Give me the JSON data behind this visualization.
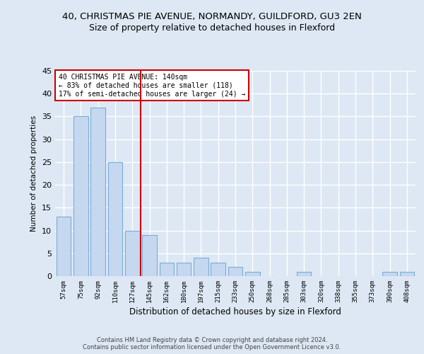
{
  "title_line1": "40, CHRISTMAS PIE AVENUE, NORMANDY, GUILDFORD, GU3 2EN",
  "title_line2": "Size of property relative to detached houses in Flexford",
  "xlabel": "Distribution of detached houses by size in Flexford",
  "ylabel": "Number of detached properties",
  "categories": [
    "57sqm",
    "75sqm",
    "92sqm",
    "110sqm",
    "127sqm",
    "145sqm",
    "162sqm",
    "180sqm",
    "197sqm",
    "215sqm",
    "233sqm",
    "250sqm",
    "268sqm",
    "285sqm",
    "303sqm",
    "320sqm",
    "338sqm",
    "355sqm",
    "373sqm",
    "390sqm",
    "408sqm"
  ],
  "values": [
    13,
    35,
    37,
    25,
    10,
    9,
    3,
    3,
    4,
    3,
    2,
    1,
    0,
    0,
    1,
    0,
    0,
    0,
    0,
    1,
    1
  ],
  "bar_color": "#c5d8f0",
  "bar_edge_color": "#7aadd4",
  "red_line_x": 4.5,
  "annotation_line1": "40 CHRISTMAS PIE AVENUE: 140sqm",
  "annotation_line2": "← 83% of detached houses are smaller (118)",
  "annotation_line3": "17% of semi-detached houses are larger (24) →",
  "annotation_box_color": "#ffffff",
  "annotation_box_edge": "#cc0000",
  "footer_line1": "Contains HM Land Registry data © Crown copyright and database right 2024.",
  "footer_line2": "Contains public sector information licensed under the Open Government Licence v3.0.",
  "ylim": [
    0,
    45
  ],
  "yticks": [
    0,
    5,
    10,
    15,
    20,
    25,
    30,
    35,
    40,
    45
  ],
  "background_color": "#dde8f4",
  "plot_bg_color": "#dde8f4",
  "grid_color": "#ffffff",
  "title1_fontsize": 9.5,
  "title2_fontsize": 9
}
